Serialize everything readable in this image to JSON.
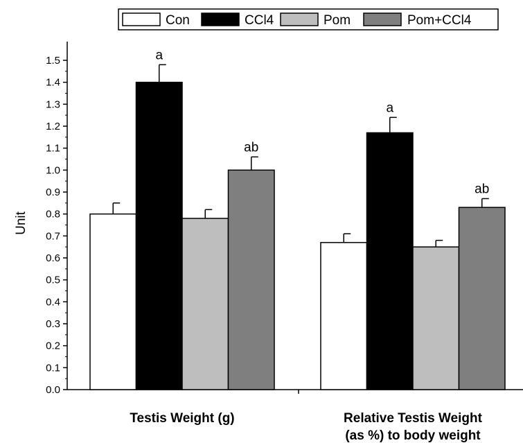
{
  "chart_data": {
    "type": "bar",
    "title": "",
    "xlabel": "",
    "ylabel": "Unit",
    "ylim": [
      0.0,
      1.5
    ],
    "yticks": [
      "0.0",
      "0.1",
      "0.2",
      "0.3",
      "0.4",
      "0.5",
      "0.6",
      "0.7",
      "0.8",
      "0.9",
      "1.0",
      "1.1",
      "1.2",
      "1.3",
      "1.4",
      "1.5"
    ],
    "grid": false,
    "legend_position": "top-right",
    "categories": [
      [
        "Testis Weight (g)"
      ],
      [
        "Relative Testis Weight",
        "(as %) to body weight"
      ]
    ],
    "series": [
      {
        "name": "Con",
        "color": "#ffffff",
        "values": [
          0.8,
          0.67
        ],
        "errors": [
          0.05,
          0.04
        ],
        "labels": [
          "",
          ""
        ]
      },
      {
        "name": "CCl4",
        "color": "#000000",
        "values": [
          1.4,
          1.17
        ],
        "errors": [
          0.08,
          0.07
        ],
        "labels": [
          "a",
          "a"
        ]
      },
      {
        "name": "Pom",
        "color": "#bebebe",
        "values": [
          0.78,
          0.65
        ],
        "errors": [
          0.04,
          0.03
        ],
        "labels": [
          "",
          ""
        ]
      },
      {
        "name": "Pom+CCl4",
        "color": "#7f7f7f",
        "values": [
          1.0,
          0.83
        ],
        "errors": [
          0.06,
          0.04
        ],
        "labels": [
          "ab",
          "ab"
        ]
      }
    ]
  }
}
